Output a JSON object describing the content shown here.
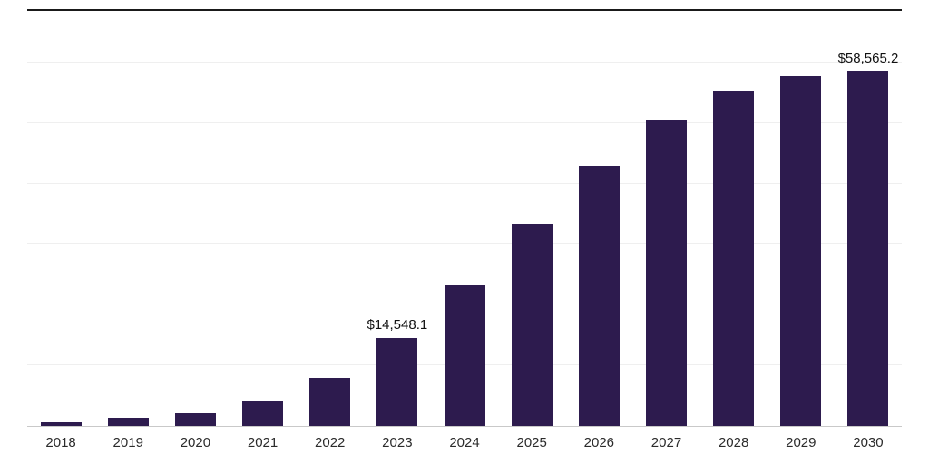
{
  "page": {
    "background": "#ffffff"
  },
  "chart_data": {
    "type": "bar",
    "title": "",
    "xlabel": "",
    "ylabel": "",
    "categories": [
      "2018",
      "2019",
      "2020",
      "2021",
      "2022",
      "2023",
      "2024",
      "2025",
      "2026",
      "2027",
      "2028",
      "2029",
      "2030"
    ],
    "values": [
      600,
      1400,
      2150,
      4100,
      8000,
      14548.1,
      23300,
      33300,
      42900,
      50500,
      55300,
      57800,
      58565.2
    ],
    "data_labels": [
      null,
      null,
      null,
      null,
      null,
      "$14,548.1",
      null,
      null,
      null,
      null,
      null,
      null,
      "$58,565.2"
    ],
    "ylim": [
      0,
      68500
    ],
    "gridline_values": [
      10000,
      20000,
      30000,
      40000,
      50000,
      60000
    ],
    "legend": "none",
    "grid": "horizontal",
    "colors": {
      "bar": "#2d1b4e",
      "gridline": "#efefef",
      "axis_line": "#c9c9c9",
      "top_border": "#1a1a1a",
      "label_text": "#111111",
      "tick_text": "#2b2b2b"
    }
  }
}
